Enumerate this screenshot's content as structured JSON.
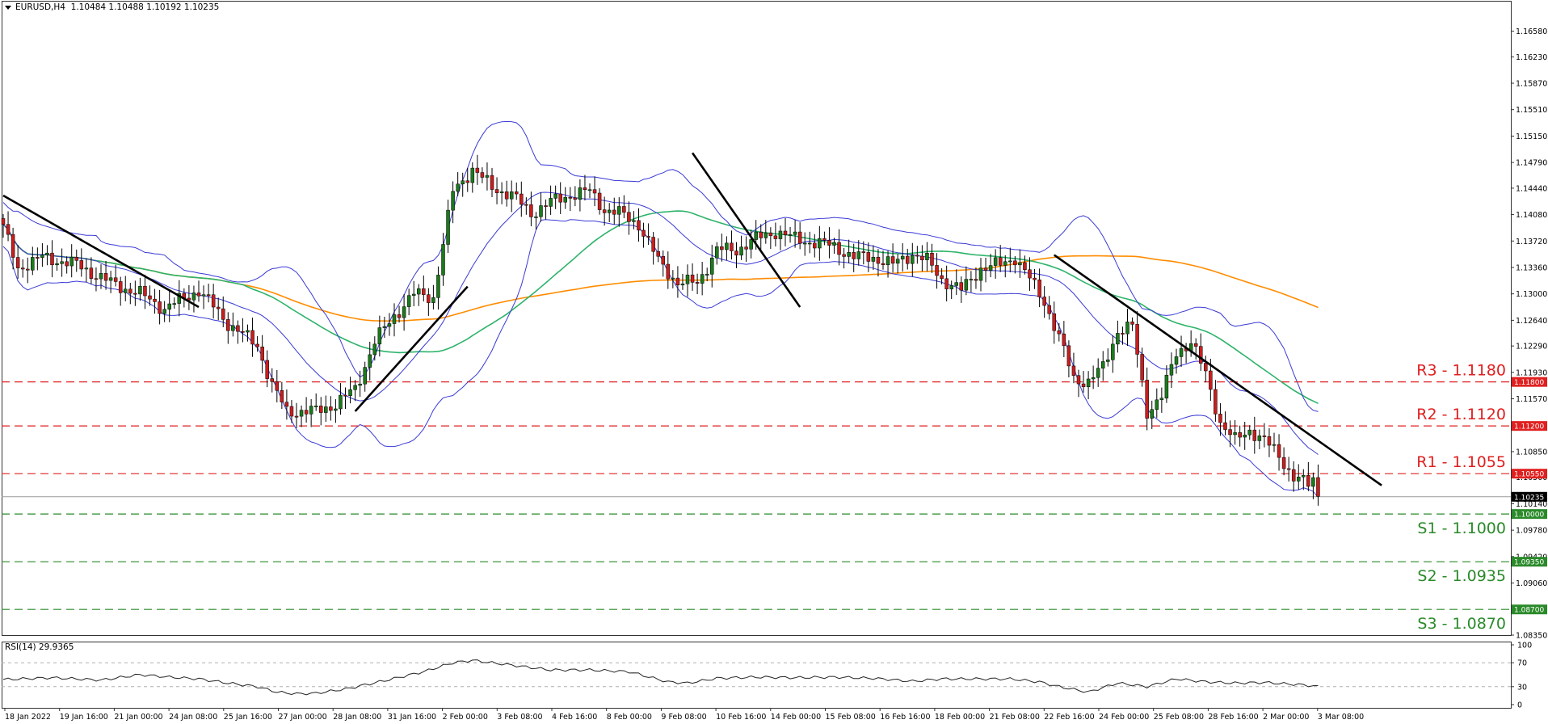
{
  "header": {
    "symbol": "EURUSD,H4",
    "ohlc": "1.10484 1.10488 1.10192 1.10235"
  },
  "rsi_header": {
    "label": "RSI(14) 29.9365"
  },
  "colors": {
    "up_candle": "#1b7a1b",
    "down_candle": "#c81e1e",
    "bollinger": "#3a3ad6",
    "ma_slow": "#ff8c00",
    "ma_fast": "#2db36a",
    "trendline": "#000000",
    "resistance": "#e02020",
    "support": "#2a8a2a",
    "current_price_bg": "#000000",
    "rsi_line": "#222222"
  },
  "chart_data": [
    {
      "type": "candlestick",
      "title": "EURUSD,H4",
      "ylim": [
        1.0835,
        1.1685
      ],
      "y_ticks": [
        "1.16580",
        "1.16230",
        "1.15870",
        "1.15510",
        "1.15150",
        "1.14790",
        "1.14440",
        "1.14080",
        "1.13720",
        "1.13360",
        "1.13000",
        "1.12640",
        "1.12290",
        "1.11930",
        "1.11570",
        "1.10850",
        "1.10500",
        "1.10140",
        "1.09780",
        "1.09420",
        "1.09060",
        "1.08350"
      ],
      "x_ticks": [
        "18 Jan 2022",
        "19 Jan 16:00",
        "21 Jan 00:00",
        "24 Jan 08:00",
        "25 Jan 16:00",
        "27 Jan 00:00",
        "28 Jan 08:00",
        "31 Jan 16:00",
        "2 Feb 00:00",
        "3 Feb 08:00",
        "4 Feb 16:00",
        "8 Feb 00:00",
        "9 Feb 08:00",
        "10 Feb 16:00",
        "14 Feb 00:00",
        "15 Feb 08:00",
        "16 Feb 16:00",
        "18 Feb 00:00",
        "21 Feb 08:00",
        "22 Feb 16:00",
        "24 Feb 00:00",
        "25 Feb 08:00",
        "28 Feb 16:00",
        "2 Mar 00:00",
        "3 Mar 08:00"
      ],
      "close_anchors": [
        [
          0,
          1.139
        ],
        [
          3,
          1.1335
        ],
        [
          8,
          1.135
        ],
        [
          15,
          1.134
        ],
        [
          22,
          1.1315
        ],
        [
          28,
          1.13
        ],
        [
          33,
          1.128
        ],
        [
          40,
          1.1305
        ],
        [
          46,
          1.126
        ],
        [
          52,
          1.123
        ],
        [
          55,
          1.1175
        ],
        [
          58,
          1.114
        ],
        [
          64,
          1.114
        ],
        [
          68,
          1.115
        ],
        [
          72,
          1.117
        ],
        [
          76,
          1.1235
        ],
        [
          80,
          1.127
        ],
        [
          84,
          1.13
        ],
        [
          88,
          1.1295
        ],
        [
          92,
          1.144
        ],
        [
          96,
          1.147
        ],
        [
          100,
          1.1445
        ],
        [
          104,
          1.1435
        ],
        [
          108,
          1.141
        ],
        [
          112,
          1.1425
        ],
        [
          116,
          1.1435
        ],
        [
          120,
          1.144
        ],
        [
          123,
          1.1415
        ],
        [
          126,
          1.141
        ],
        [
          130,
          1.1395
        ],
        [
          134,
          1.1345
        ],
        [
          138,
          1.1315
        ],
        [
          142,
          1.1315
        ],
        [
          146,
          1.136
        ],
        [
          150,
          1.136
        ],
        [
          154,
          1.1375
        ],
        [
          158,
          1.1385
        ],
        [
          162,
          1.1375
        ],
        [
          166,
          1.137
        ],
        [
          170,
          1.1365
        ],
        [
          174,
          1.135
        ],
        [
          178,
          1.135
        ],
        [
          182,
          1.134
        ],
        [
          186,
          1.1355
        ],
        [
          189,
          1.1345
        ],
        [
          192,
          1.132
        ],
        [
          196,
          1.1305
        ],
        [
          200,
          1.1335
        ],
        [
          204,
          1.134
        ],
        [
          207,
          1.135
        ],
        [
          210,
          1.132
        ],
        [
          213,
          1.129
        ],
        [
          216,
          1.124
        ],
        [
          219,
          1.1185
        ],
        [
          222,
          1.118
        ],
        [
          225,
          1.12
        ],
        [
          228,
          1.125
        ],
        [
          231,
          1.1255
        ],
        [
          234,
          1.114
        ],
        [
          237,
          1.116
        ],
        [
          240,
          1.122
        ],
        [
          243,
          1.1235
        ],
        [
          246,
          1.119
        ],
        [
          249,
          1.1125
        ],
        [
          252,
          1.11
        ],
        [
          255,
          1.1115
        ],
        [
          258,
          1.11
        ],
        [
          261,
          1.108
        ],
        [
          264,
          1.105
        ],
        [
          267,
          1.104
        ],
        [
          268,
          1.1048
        ],
        [
          269,
          1.1024
        ]
      ],
      "overlays": [
        {
          "name": "Bollinger Bands (20, 2)",
          "kind": "band"
        },
        {
          "name": "Moving Average (fast)",
          "kind": "line"
        },
        {
          "name": "Moving Average (slow)",
          "kind": "line"
        }
      ],
      "trendlines": [
        {
          "from": [
            0,
            1.1434
          ],
          "to": [
            40,
            1.1282
          ]
        },
        {
          "from": [
            72,
            1.114
          ],
          "to": [
            95,
            1.131
          ]
        },
        {
          "from": [
            141,
            1.1492
          ],
          "to": [
            163,
            1.1282
          ]
        },
        {
          "from": [
            215,
            1.1353
          ],
          "to": [
            282,
            1.1039
          ]
        }
      ],
      "levels": [
        {
          "label": "R3 - 1.1180",
          "tag": "1.11800",
          "value": 1.118,
          "kind": "resistance"
        },
        {
          "label": "R2 - 1.1120",
          "tag": "1.11200",
          "value": 1.112,
          "kind": "resistance"
        },
        {
          "label": "R1 - 1.1055",
          "tag": "1.10550",
          "value": 1.1055,
          "kind": "resistance"
        },
        {
          "label": "S1 - 1.1000",
          "tag": "1.10000",
          "value": 1.1,
          "kind": "support"
        },
        {
          "label": "S2 - 1.0935",
          "tag": "1.09350",
          "value": 1.0935,
          "kind": "support"
        },
        {
          "label": "S3 - 1.0870",
          "tag": "1.08700",
          "value": 1.087,
          "kind": "support"
        }
      ],
      "current_price": {
        "value": 1.10235,
        "tag": "1.10235"
      }
    },
    {
      "type": "line",
      "title": "RSI(14) 29.9365",
      "ylim": [
        0,
        100
      ],
      "y_ticks": [
        "100",
        "70",
        "30",
        "0"
      ],
      "reference_levels": [
        70,
        30
      ],
      "anchors": [
        [
          0,
          42
        ],
        [
          10,
          45
        ],
        [
          20,
          41
        ],
        [
          28,
          50
        ],
        [
          34,
          46
        ],
        [
          40,
          43
        ],
        [
          46,
          36
        ],
        [
          52,
          30
        ],
        [
          56,
          21
        ],
        [
          60,
          18
        ],
        [
          64,
          19
        ],
        [
          70,
          26
        ],
        [
          78,
          40
        ],
        [
          86,
          55
        ],
        [
          92,
          70
        ],
        [
          96,
          74
        ],
        [
          100,
          70
        ],
        [
          106,
          64
        ],
        [
          112,
          58
        ],
        [
          120,
          58
        ],
        [
          128,
          55
        ],
        [
          136,
          38
        ],
        [
          140,
          36
        ],
        [
          146,
          44
        ],
        [
          154,
          46
        ],
        [
          162,
          45
        ],
        [
          170,
          46
        ],
        [
          178,
          44
        ],
        [
          186,
          39
        ],
        [
          192,
          43
        ],
        [
          198,
          43
        ],
        [
          206,
          43
        ],
        [
          212,
          38
        ],
        [
          216,
          30
        ],
        [
          222,
          21
        ],
        [
          228,
          36
        ],
        [
          234,
          30
        ],
        [
          240,
          43
        ],
        [
          246,
          38
        ],
        [
          252,
          36
        ],
        [
          258,
          37
        ],
        [
          262,
          35
        ],
        [
          266,
          33
        ],
        [
          269,
          30
        ]
      ]
    }
  ]
}
